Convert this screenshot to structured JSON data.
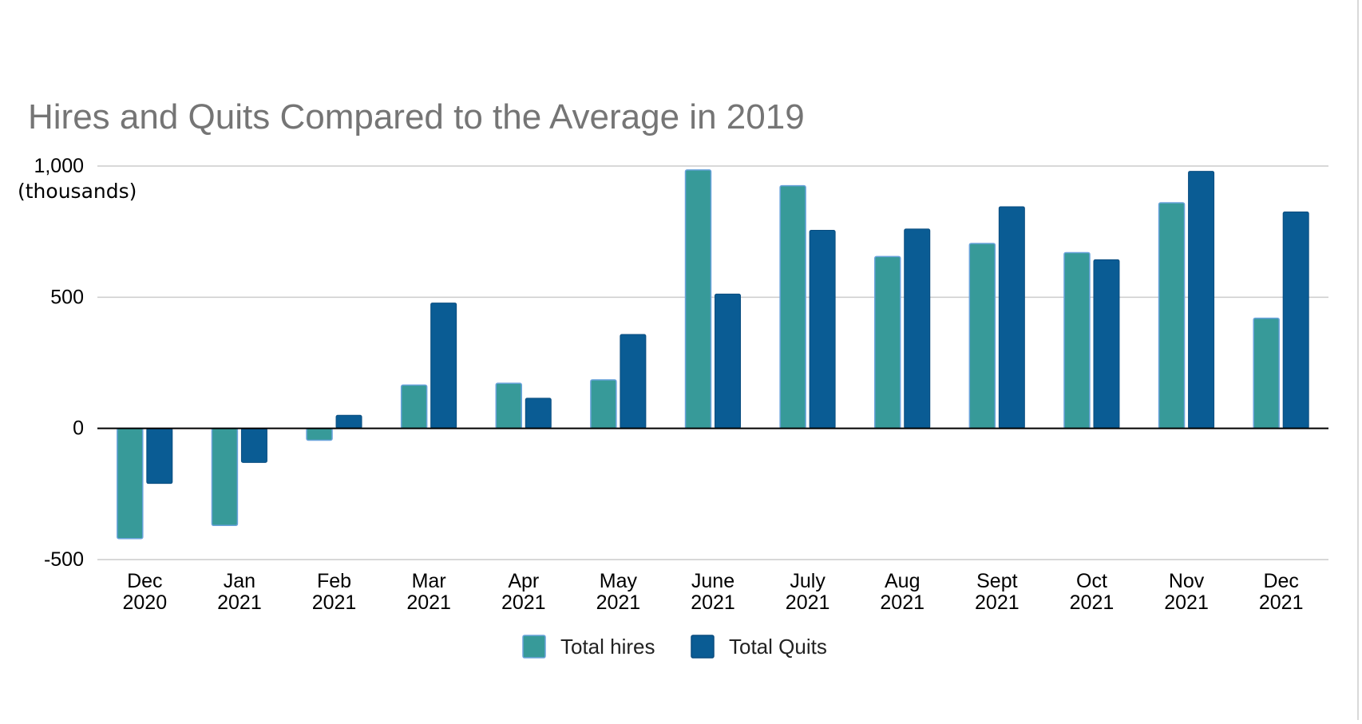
{
  "chart_data": {
    "type": "bar",
    "title": "Hires and Quits Compared to the Average in 2019",
    "ylabel": "(thousands)",
    "xlabel": "",
    "ylim": [
      -500,
      1000
    ],
    "yticks": [
      {
        "value": 1000,
        "label": "1,000"
      },
      {
        "value": 500,
        "label": "500"
      },
      {
        "value": 0,
        "label": "0"
      },
      {
        "value": -500,
        "label": "-500"
      }
    ],
    "grid": true,
    "legend_position": "bottom",
    "categories": [
      [
        "Dec",
        "2020"
      ],
      [
        "Jan",
        "2021"
      ],
      [
        "Feb",
        "2021"
      ],
      [
        "Mar",
        "2021"
      ],
      [
        "Apr",
        "2021"
      ],
      [
        "May",
        "2021"
      ],
      [
        "June",
        "2021"
      ],
      [
        "July",
        "2021"
      ],
      [
        "Aug",
        "2021"
      ],
      [
        "Sept",
        "2021"
      ],
      [
        "Oct",
        "2021"
      ],
      [
        "Nov",
        "2021"
      ],
      [
        "Dec",
        "2021"
      ]
    ],
    "series": [
      {
        "name": "Total hires",
        "color": "#379a99",
        "values": [
          -420,
          -370,
          -45,
          165,
          172,
          185,
          985,
          925,
          655,
          705,
          670,
          860,
          420
        ]
      },
      {
        "name": "Total Quits",
        "color": "#0a5c94",
        "values": [
          -210,
          -130,
          50,
          478,
          115,
          358,
          512,
          755,
          760,
          845,
          643,
          980,
          825
        ]
      }
    ]
  }
}
